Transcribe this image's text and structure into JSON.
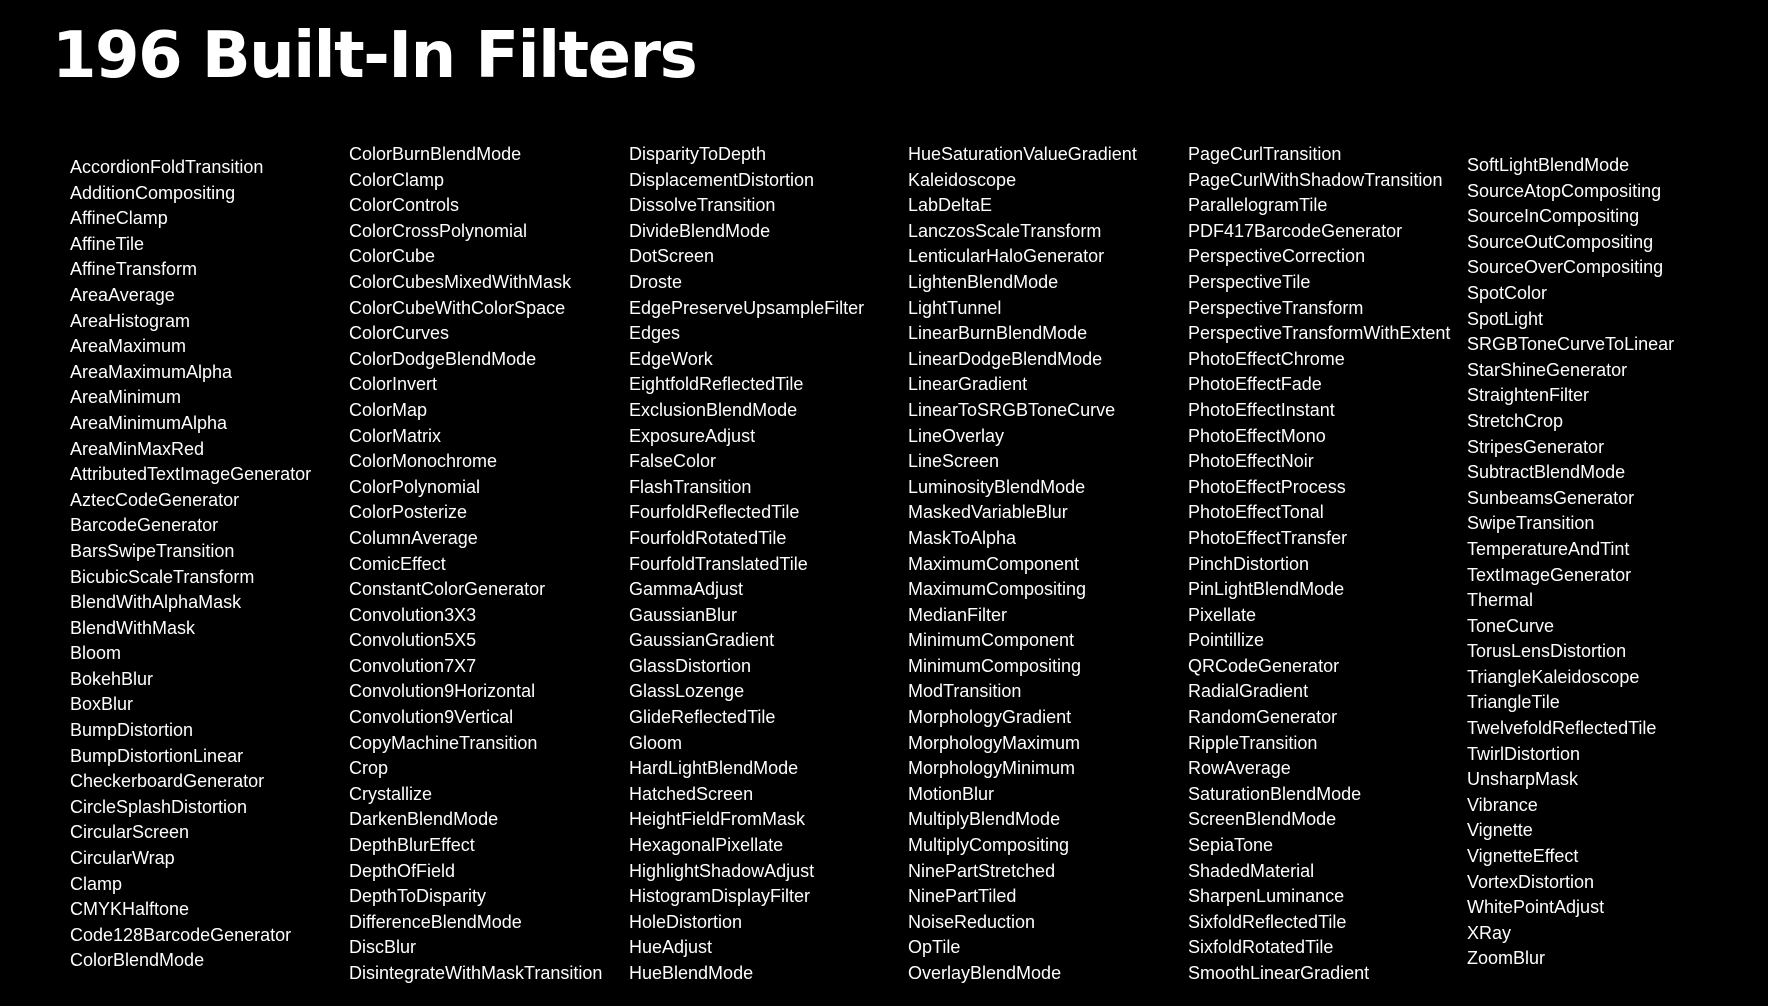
{
  "title": "196 Built-In Filters",
  "colors": {
    "background": "#000000",
    "text": "#ffffff"
  },
  "columns": [
    {
      "items": [
        "AccordionFoldTransition",
        "AdditionCompositing",
        "AffineClamp",
        "AffineTile",
        "AffineTransform",
        "AreaAverage",
        "AreaHistogram",
        "AreaMaximum",
        "AreaMaximumAlpha",
        "AreaMinimum",
        "AreaMinimumAlpha",
        "AreaMinMaxRed",
        "AttributedTextImageGenerator",
        "AztecCodeGenerator",
        "BarcodeGenerator",
        "BarsSwipeTransition",
        "BicubicScaleTransform",
        "BlendWithAlphaMask",
        "BlendWithMask",
        "Bloom",
        "BokehBlur",
        "BoxBlur",
        "BumpDistortion",
        "BumpDistortionLinear",
        "CheckerboardGenerator",
        "CircleSplashDistortion",
        "CircularScreen",
        "CircularWrap",
        "Clamp",
        "CMYKHalftone",
        "Code128BarcodeGenerator",
        "ColorBlendMode"
      ]
    },
    {
      "items": [
        "ColorBurnBlendMode",
        "ColorClamp",
        "ColorControls",
        "ColorCrossPolynomial",
        "ColorCube",
        "ColorCubesMixedWithMask",
        "ColorCubeWithColorSpace",
        "ColorCurves",
        "ColorDodgeBlendMode",
        "ColorInvert",
        "ColorMap",
        "ColorMatrix",
        "ColorMonochrome",
        "ColorPolynomial",
        "ColorPosterize",
        "ColumnAverage",
        "ComicEffect",
        "ConstantColorGenerator",
        "Convolution3X3",
        "Convolution5X5",
        "Convolution7X7",
        "Convolution9Horizontal",
        "Convolution9Vertical",
        "CopyMachineTransition",
        "Crop",
        "Crystallize",
        "DarkenBlendMode",
        "DepthBlurEffect",
        "DepthOfField",
        "DepthToDisparity",
        "DifferenceBlendMode",
        "DiscBlur",
        "DisintegrateWithMaskTransition"
      ]
    },
    {
      "items": [
        "DisparityToDepth",
        "DisplacementDistortion",
        "DissolveTransition",
        "DivideBlendMode",
        "DotScreen",
        "Droste",
        "EdgePreserveUpsampleFilter",
        "Edges",
        "EdgeWork",
        "EightfoldReflectedTile",
        "ExclusionBlendMode",
        "ExposureAdjust",
        "FalseColor",
        "FlashTransition",
        "FourfoldReflectedTile",
        "FourfoldRotatedTile",
        "FourfoldTranslatedTile",
        "GammaAdjust",
        "GaussianBlur",
        "GaussianGradient",
        "GlassDistortion",
        "GlassLozenge",
        "GlideReflectedTile",
        "Gloom",
        "HardLightBlendMode",
        "HatchedScreen",
        "HeightFieldFromMask",
        "HexagonalPixellate",
        "HighlightShadowAdjust",
        "HistogramDisplayFilter",
        "HoleDistortion",
        "HueAdjust",
        "HueBlendMode"
      ]
    },
    {
      "items": [
        "HueSaturationValueGradient",
        "Kaleidoscope",
        "LabDeltaE",
        "LanczosScaleTransform",
        "LenticularHaloGenerator",
        "LightenBlendMode",
        "LightTunnel",
        "LinearBurnBlendMode",
        "LinearDodgeBlendMode",
        "LinearGradient",
        "LinearToSRGBToneCurve",
        "LineOverlay",
        "LineScreen",
        "LuminosityBlendMode",
        "MaskedVariableBlur",
        "MaskToAlpha",
        "MaximumComponent",
        "MaximumCompositing",
        "MedianFilter",
        "MinimumComponent",
        "MinimumCompositing",
        "ModTransition",
        "MorphologyGradient",
        "MorphologyMaximum",
        "MorphologyMinimum",
        "MotionBlur",
        "MultiplyBlendMode",
        "MultiplyCompositing",
        "NinePartStretched",
        "NinePartTiled",
        "NoiseReduction",
        "OpTile",
        "OverlayBlendMode"
      ]
    },
    {
      "items": [
        "PageCurlTransition",
        "PageCurlWithShadowTransition",
        "ParallelogramTile",
        "PDF417BarcodeGenerator",
        "PerspectiveCorrection",
        "PerspectiveTile",
        "PerspectiveTransform",
        "PerspectiveTransformWithExtent",
        "PhotoEffectChrome",
        "PhotoEffectFade",
        "PhotoEffectInstant",
        "PhotoEffectMono",
        "PhotoEffectNoir",
        "PhotoEffectProcess",
        "PhotoEffectTonal",
        "PhotoEffectTransfer",
        "PinchDistortion",
        "PinLightBlendMode",
        "Pixellate",
        "Pointillize",
        "QRCodeGenerator",
        "RadialGradient",
        "RandomGenerator",
        "RippleTransition",
        "RowAverage",
        "SaturationBlendMode",
        "ScreenBlendMode",
        "SepiaTone",
        "ShadedMaterial",
        "SharpenLuminance",
        "SixfoldReflectedTile",
        "SixfoldRotatedTile",
        "SmoothLinearGradient"
      ]
    },
    {
      "items": [
        "SoftLightBlendMode",
        "SourceAtopCompositing",
        "SourceInCompositing",
        "SourceOutCompositing",
        "SourceOverCompositing",
        "SpotColor",
        "SpotLight",
        "SRGBToneCurveToLinear",
        "StarShineGenerator",
        "StraightenFilter",
        "StretchCrop",
        "StripesGenerator",
        "SubtractBlendMode",
        "SunbeamsGenerator",
        "SwipeTransition",
        "TemperatureAndTint",
        "TextImageGenerator",
        "Thermal",
        "ToneCurve",
        "TorusLensDistortion",
        "TriangleKaleidoscope",
        "TriangleTile",
        "TwelvefoldReflectedTile",
        "TwirlDistortion",
        "UnsharpMask",
        "Vibrance",
        "Vignette",
        "VignetteEffect",
        "VortexDistortion",
        "WhitePointAdjust",
        "XRay",
        "ZoomBlur"
      ]
    }
  ]
}
